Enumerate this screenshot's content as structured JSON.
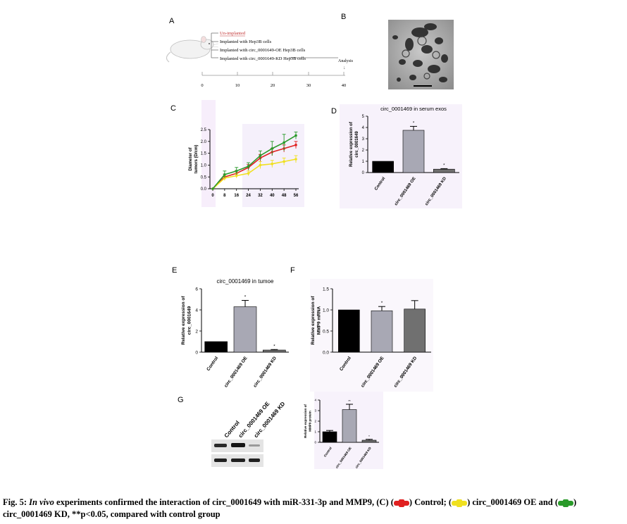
{
  "panel_labels": [
    "A",
    "B",
    "C",
    "D",
    "E",
    "F",
    "G"
  ],
  "panel_a": {
    "groups": [
      "Un-implanted",
      "Implanted with Hep3B cells",
      "Implanted with circ_0001649-OE Hep3B cells",
      "Implanted with circ_0001649-KD Hep3B cells"
    ],
    "analysis_label": "Analysis",
    "timeline_ticks": [
      "0",
      "10",
      "20",
      "30",
      "40"
    ]
  },
  "chart_data": [
    {
      "panel": "C",
      "type": "line",
      "title": "",
      "xlabel": "",
      "ylabel": "Diameter of tumors (D/cm)",
      "x": [
        0,
        8,
        16,
        24,
        32,
        40,
        48,
        56
      ],
      "ylim": [
        0,
        2.5
      ],
      "yticks": [
        "0.0",
        "0.5",
        "1.0",
        "1.5",
        "2.0",
        "2.5"
      ],
      "series": [
        {
          "color": "#e02020",
          "values": [
            0,
            0.5,
            0.65,
            0.9,
            1.3,
            1.55,
            1.7,
            1.85
          ],
          "errors": [
            0,
            0.12,
            0.12,
            0.12,
            0.15,
            0.15,
            0.15,
            0.15
          ]
        },
        {
          "color": "#f0e020",
          "values": [
            0,
            0.45,
            0.55,
            0.65,
            1.0,
            1.05,
            1.15,
            1.25
          ],
          "errors": [
            0,
            0.1,
            0.1,
            0.1,
            0.15,
            0.15,
            0.15,
            0.15
          ]
        },
        {
          "color": "#2a9a2a",
          "values": [
            0,
            0.6,
            0.75,
            0.95,
            1.4,
            1.7,
            1.95,
            2.25
          ],
          "errors": [
            0,
            0.15,
            0.15,
            0.15,
            0.2,
            0.3,
            0.35,
            0.15
          ]
        }
      ]
    },
    {
      "panel": "D",
      "type": "bar",
      "title": "circ_0001469 in serum exos",
      "ylabel": "Relative expression of circ_0001649",
      "categories": [
        "Control",
        "circ_0001469 OE",
        "circ_0001469 KD"
      ],
      "values": [
        1.0,
        3.75,
        0.3
      ],
      "errors": [
        0,
        0.35,
        0.05
      ],
      "colors": [
        "#000000",
        "#a8a8b4",
        "#707070"
      ],
      "sig": [
        "",
        "*",
        "*"
      ],
      "ylim": [
        0,
        5
      ],
      "yticks": [
        "0",
        "1",
        "2",
        "3",
        "4",
        "5"
      ]
    },
    {
      "panel": "E",
      "type": "bar",
      "title": "circ_0001469 in tumoe",
      "ylabel": "Relative expression of circ_0001649",
      "categories": [
        "Control",
        "circ_0001469 OE",
        "circ_0001469 KD"
      ],
      "values": [
        1.0,
        4.3,
        0.2
      ],
      "errors": [
        0,
        0.6,
        0.05
      ],
      "colors": [
        "#000000",
        "#a8a8b4",
        "#707070"
      ],
      "sig": [
        "",
        "*",
        "*"
      ],
      "ylim": [
        0,
        6
      ],
      "yticks": [
        "0",
        "2",
        "4",
        "6"
      ]
    },
    {
      "panel": "F",
      "type": "bar",
      "title": "",
      "ylabel": "Relative expression of MMP9 mRNA",
      "categories": [
        "Control",
        "circ_0001469 OE",
        "circ_0001469 KD"
      ],
      "values": [
        1.0,
        0.98,
        1.02
      ],
      "errors": [
        0,
        0.1,
        0.2
      ],
      "colors": [
        "#000000",
        "#a8a8b4",
        "#707070"
      ],
      "sig": [
        "",
        "*",
        ""
      ],
      "ylim": [
        0,
        1.5
      ],
      "yticks": [
        "0.0",
        "0.5",
        "1.0",
        "1.5"
      ]
    },
    {
      "panel": "G",
      "type": "bar",
      "title": "",
      "ylabel": "Relative expression of MMP9 protein",
      "categories": [
        "Control",
        "circ_0001469 OE",
        "circ_0001469 KD"
      ],
      "values": [
        1.0,
        3.1,
        0.2
      ],
      "errors": [
        0.12,
        0.5,
        0.08
      ],
      "colors": [
        "#000000",
        "#a8a8b4",
        "#707070"
      ],
      "sig": [
        "",
        "**",
        "*"
      ],
      "ylim": [
        0,
        4
      ],
      "yticks": [
        "0",
        "1",
        "2",
        "3",
        "4"
      ]
    }
  ],
  "panel_g": {
    "blot_lanes": [
      "Control",
      "circ_0001469 OE",
      "circ_0001469 KD"
    ]
  },
  "caption": {
    "prefix": "Fig. 5: ",
    "italic": "In vivo",
    "part1": " experiments confirmed the interaction of circ_0001649 with miR-331-3p and MMP9, (C) (",
    "part2": ") Control; (",
    "part3": ") circ_0001469 OE and (",
    "part4": ") circ_0001469 KD, **p<0.05, compared with control group",
    "colors": {
      "control": "#e02020",
      "oe": "#f0e020",
      "kd": "#2a9a2a"
    }
  }
}
